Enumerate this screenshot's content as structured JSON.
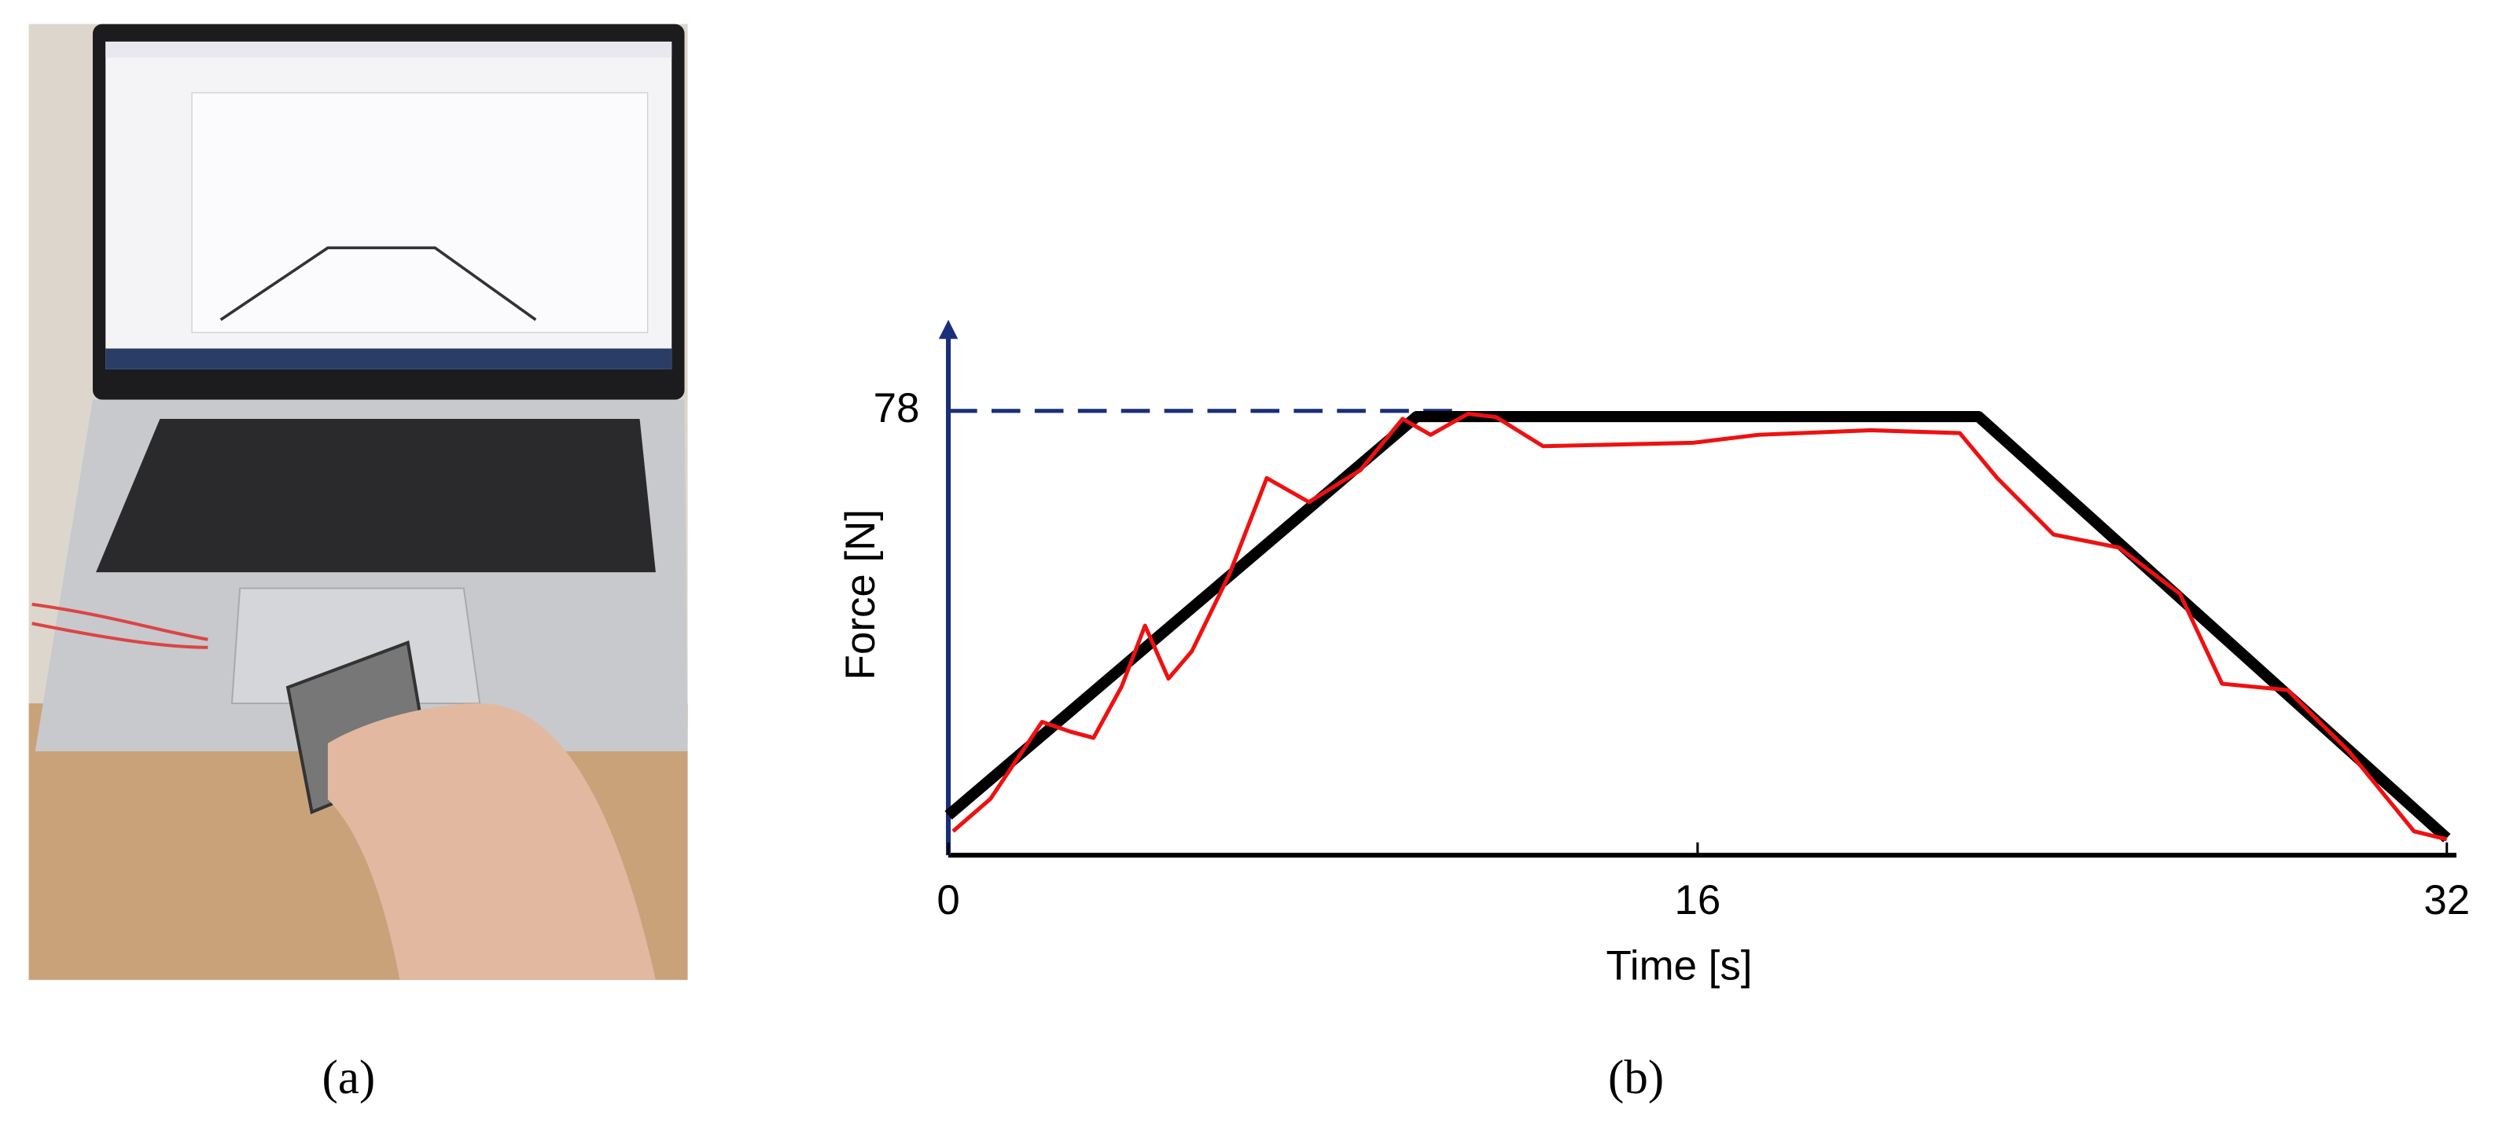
{
  "chart_data": {
    "type": "line",
    "panel_labels": [
      "(a)",
      "(b)"
    ],
    "xlabel": "Time [s]",
    "ylabel": "Force [N]",
    "xlim": [
      0,
      32
    ],
    "xticks": [
      0,
      16,
      32
    ],
    "ylim": [
      0,
      94
    ],
    "yticks": [
      78
    ],
    "series": [
      {
        "color": "#000000",
        "x": [
          0,
          10,
          22,
          32
        ],
        "values": [
          7,
          77,
          77,
          3
        ]
      },
      {
        "color": "#ee1111",
        "x": [
          0.1,
          0.9,
          2.0,
          2.6,
          3.1,
          3.7,
          4.2,
          4.7,
          5.2,
          6.0,
          6.8,
          7.7,
          8.8,
          9.7,
          10.3,
          11.1,
          11.7,
          12.7,
          15.9,
          17.3,
          19.7,
          21.6,
          22.4,
          23.6,
          25.0,
          26.3,
          27.2,
          28.6,
          29.9,
          31.3,
          32.0
        ],
        "values": [
          4.2,
          9.9,
          23.4,
          21.7,
          20.6,
          29.6,
          40.3,
          31.0,
          35.8,
          49.3,
          66.2,
          62.0,
          67.6,
          76.6,
          73.8,
          77.5,
          76.9,
          71.8,
          72.4,
          73.8,
          74.6,
          74.1,
          66.2,
          56.3,
          54.0,
          45.9,
          30.1,
          29.0,
          18.3,
          4.2,
          2.8
        ]
      }
    ]
  }
}
